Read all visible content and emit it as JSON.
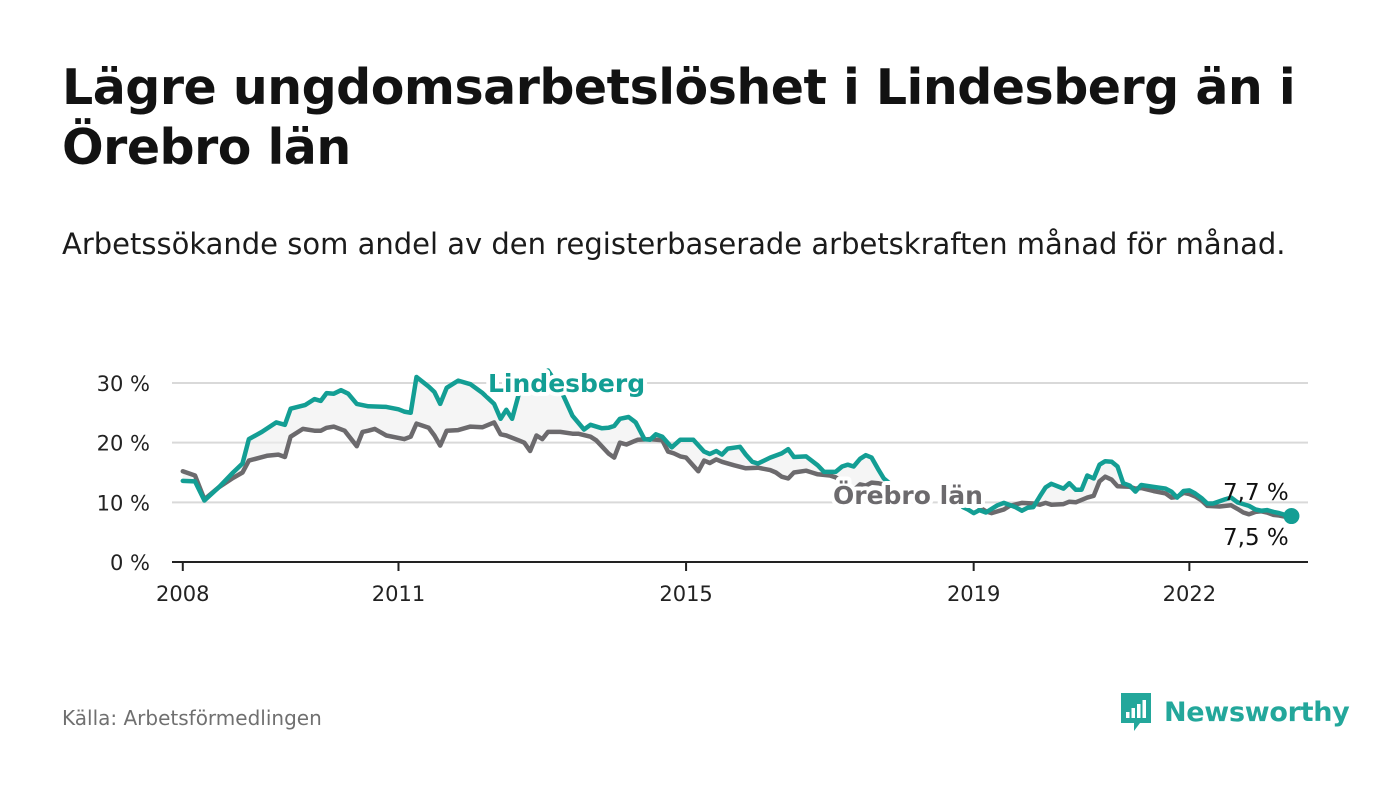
{
  "title": "Lägre ungdomsarbetslöshet i Lindesberg än i Örebro län",
  "subtitle": "Arbetssökande som andel av den registerbaserade arbetskraften månad för månad.",
  "source": "Källa: Arbetsförmedlingen",
  "brand": "Newsworthy",
  "colors": {
    "lindesberg": "#139e94",
    "orebro": "#6c6a6d",
    "grid": "#d9d9d9",
    "brand": "#23a79b"
  },
  "chart_data": {
    "type": "line",
    "y_ticks": [
      "0 %",
      "10 %",
      "20 %",
      "30 %"
    ],
    "x_ticks": [
      "2008",
      "2011",
      "2015",
      "2019",
      "2022"
    ],
    "ylim": [
      0,
      30
    ],
    "xlim": [
      2007.85,
      2023.65
    ],
    "grid": true,
    "series": [
      {
        "name": "Lindesberg",
        "label_text": "Lindesberg",
        "end_label": "7,7 %",
        "points": [
          [
            2008.0,
            13.6
          ],
          [
            2008.17,
            13.5
          ],
          [
            2008.3,
            10.3
          ],
          [
            2008.5,
            12.5
          ],
          [
            2008.7,
            15.0
          ],
          [
            2008.83,
            16.5
          ],
          [
            2008.92,
            20.6
          ],
          [
            2009.1,
            21.8
          ],
          [
            2009.3,
            23.4
          ],
          [
            2009.42,
            23.0
          ],
          [
            2009.5,
            25.7
          ],
          [
            2009.7,
            26.3
          ],
          [
            2009.83,
            27.3
          ],
          [
            2009.92,
            27.0
          ],
          [
            2010.0,
            28.3
          ],
          [
            2010.1,
            28.2
          ],
          [
            2010.2,
            28.8
          ],
          [
            2010.3,
            28.2
          ],
          [
            2010.42,
            26.5
          ],
          [
            2010.58,
            26.1
          ],
          [
            2010.83,
            26.0
          ],
          [
            2011.0,
            25.6
          ],
          [
            2011.08,
            25.2
          ],
          [
            2011.17,
            25.0
          ],
          [
            2011.25,
            31.0
          ],
          [
            2011.42,
            29.4
          ],
          [
            2011.5,
            28.5
          ],
          [
            2011.58,
            26.5
          ],
          [
            2011.67,
            29.2
          ],
          [
            2011.83,
            30.4
          ],
          [
            2012.0,
            29.8
          ],
          [
            2012.17,
            28.3
          ],
          [
            2012.33,
            26.5
          ],
          [
            2012.42,
            24.0
          ],
          [
            2012.5,
            25.5
          ],
          [
            2012.58,
            24.0
          ],
          [
            2012.67,
            28.0
          ],
          [
            2012.83,
            30.3
          ],
          [
            2013.0,
            31.0
          ],
          [
            2013.08,
            32.1
          ],
          [
            2013.25,
            29.0
          ],
          [
            2013.42,
            24.5
          ],
          [
            2013.58,
            22.2
          ],
          [
            2013.67,
            23.0
          ],
          [
            2013.83,
            22.4
          ],
          [
            2013.92,
            22.5
          ],
          [
            2014.0,
            22.8
          ],
          [
            2014.08,
            24.0
          ],
          [
            2014.2,
            24.3
          ],
          [
            2014.3,
            23.4
          ],
          [
            2014.42,
            20.6
          ],
          [
            2014.5,
            20.5
          ],
          [
            2014.58,
            21.4
          ],
          [
            2014.67,
            21.0
          ],
          [
            2014.8,
            19.2
          ],
          [
            2014.92,
            20.5
          ],
          [
            2015.1,
            20.5
          ],
          [
            2015.25,
            18.5
          ],
          [
            2015.33,
            18.1
          ],
          [
            2015.42,
            18.6
          ],
          [
            2015.5,
            18.0
          ],
          [
            2015.58,
            19.0
          ],
          [
            2015.75,
            19.3
          ],
          [
            2015.83,
            18.0
          ],
          [
            2015.92,
            16.8
          ],
          [
            2016.0,
            16.5
          ],
          [
            2016.17,
            17.5
          ],
          [
            2016.33,
            18.2
          ],
          [
            2016.42,
            18.9
          ],
          [
            2016.5,
            17.6
          ],
          [
            2016.67,
            17.7
          ],
          [
            2016.83,
            16.2
          ],
          [
            2016.92,
            15.1
          ],
          [
            2017.08,
            15.1
          ],
          [
            2017.17,
            16.0
          ],
          [
            2017.25,
            16.3
          ],
          [
            2017.33,
            16.0
          ],
          [
            2017.42,
            17.3
          ],
          [
            2017.5,
            17.9
          ],
          [
            2017.58,
            17.5
          ],
          [
            2017.67,
            15.6
          ],
          [
            2017.75,
            14.0
          ],
          [
            2017.83,
            13.2
          ],
          [
            2018.85,
            9.2
          ],
          [
            2018.92,
            8.8
          ],
          [
            2019.0,
            8.2
          ],
          [
            2019.08,
            8.7
          ],
          [
            2019.17,
            8.3
          ],
          [
            2019.25,
            8.9
          ],
          [
            2019.33,
            9.5
          ],
          [
            2019.42,
            9.9
          ],
          [
            2019.58,
            9.2
          ],
          [
            2019.67,
            8.6
          ],
          [
            2019.75,
            9.1
          ],
          [
            2019.83,
            9.2
          ],
          [
            2019.92,
            11.0
          ],
          [
            2020.0,
            12.5
          ],
          [
            2020.08,
            13.1
          ],
          [
            2020.25,
            12.3
          ],
          [
            2020.33,
            13.2
          ],
          [
            2020.42,
            12.1
          ],
          [
            2020.5,
            12.1
          ],
          [
            2020.58,
            14.5
          ],
          [
            2020.67,
            14.0
          ],
          [
            2020.75,
            16.3
          ],
          [
            2020.83,
            16.9
          ],
          [
            2020.92,
            16.8
          ],
          [
            2021.0,
            16.0
          ],
          [
            2021.08,
            13.2
          ],
          [
            2021.17,
            12.8
          ],
          [
            2021.25,
            11.8
          ],
          [
            2021.33,
            12.9
          ],
          [
            2021.5,
            12.6
          ],
          [
            2021.67,
            12.3
          ],
          [
            2021.75,
            11.8
          ],
          [
            2021.83,
            10.8
          ],
          [
            2021.92,
            11.9
          ],
          [
            2022.0,
            12.0
          ],
          [
            2022.08,
            11.5
          ],
          [
            2022.17,
            10.7
          ],
          [
            2022.25,
            9.8
          ],
          [
            2022.33,
            9.8
          ],
          [
            2022.5,
            10.5
          ],
          [
            2022.58,
            10.8
          ],
          [
            2022.67,
            10.0
          ],
          [
            2022.75,
            9.7
          ],
          [
            2022.83,
            9.4
          ],
          [
            2022.92,
            8.8
          ],
          [
            2023.0,
            8.6
          ],
          [
            2023.08,
            8.7
          ],
          [
            2023.17,
            8.4
          ],
          [
            2023.25,
            8.2
          ],
          [
            2023.33,
            7.9
          ],
          [
            2023.42,
            7.7
          ]
        ]
      },
      {
        "name": "Örebro län",
        "label_text": "Örebro län",
        "end_label": "7,5 %",
        "points": [
          [
            2008.0,
            15.2
          ],
          [
            2008.17,
            14.5
          ],
          [
            2008.3,
            10.5
          ],
          [
            2008.5,
            12.5
          ],
          [
            2008.7,
            14.1
          ],
          [
            2008.83,
            15.0
          ],
          [
            2008.92,
            17.0
          ],
          [
            2009.17,
            17.8
          ],
          [
            2009.33,
            18.0
          ],
          [
            2009.42,
            17.6
          ],
          [
            2009.5,
            21.0
          ],
          [
            2009.67,
            22.3
          ],
          [
            2009.83,
            22.0
          ],
          [
            2009.92,
            22.0
          ],
          [
            2010.0,
            22.5
          ],
          [
            2010.1,
            22.7
          ],
          [
            2010.25,
            22.0
          ],
          [
            2010.42,
            19.4
          ],
          [
            2010.5,
            21.8
          ],
          [
            2010.58,
            22.0
          ],
          [
            2010.67,
            22.3
          ],
          [
            2010.83,
            21.2
          ],
          [
            2011.0,
            20.8
          ],
          [
            2011.08,
            20.6
          ],
          [
            2011.17,
            21.0
          ],
          [
            2011.25,
            23.2
          ],
          [
            2011.42,
            22.5
          ],
          [
            2011.5,
            21.2
          ],
          [
            2011.58,
            19.5
          ],
          [
            2011.67,
            22.0
          ],
          [
            2011.83,
            22.1
          ],
          [
            2012.0,
            22.7
          ],
          [
            2012.17,
            22.6
          ],
          [
            2012.33,
            23.4
          ],
          [
            2012.42,
            21.4
          ],
          [
            2012.5,
            21.2
          ],
          [
            2012.67,
            20.4
          ],
          [
            2012.75,
            20.0
          ],
          [
            2012.83,
            18.6
          ],
          [
            2012.92,
            21.2
          ],
          [
            2013.0,
            20.6
          ],
          [
            2013.08,
            21.8
          ],
          [
            2013.25,
            21.8
          ],
          [
            2013.42,
            21.5
          ],
          [
            2013.5,
            21.5
          ],
          [
            2013.67,
            21.0
          ],
          [
            2013.75,
            20.4
          ],
          [
            2013.92,
            18.2
          ],
          [
            2014.0,
            17.5
          ],
          [
            2014.08,
            20.0
          ],
          [
            2014.17,
            19.7
          ],
          [
            2014.33,
            20.5
          ],
          [
            2014.5,
            20.6
          ],
          [
            2014.67,
            20.4
          ],
          [
            2014.75,
            18.5
          ],
          [
            2014.83,
            18.2
          ],
          [
            2014.92,
            17.7
          ],
          [
            2015.0,
            17.5
          ],
          [
            2015.17,
            15.2
          ],
          [
            2015.25,
            17.0
          ],
          [
            2015.33,
            16.6
          ],
          [
            2015.42,
            17.2
          ],
          [
            2015.5,
            16.8
          ],
          [
            2015.67,
            16.2
          ],
          [
            2015.83,
            15.7
          ],
          [
            2016.0,
            15.8
          ],
          [
            2016.17,
            15.4
          ],
          [
            2016.25,
            15.0
          ],
          [
            2016.33,
            14.3
          ],
          [
            2016.42,
            14.0
          ],
          [
            2016.5,
            15.0
          ],
          [
            2016.67,
            15.3
          ],
          [
            2016.75,
            15.0
          ],
          [
            2016.83,
            14.7
          ],
          [
            2017.0,
            14.5
          ],
          [
            2017.08,
            14.2
          ],
          [
            2017.25,
            13.0
          ],
          [
            2017.33,
            12.0
          ],
          [
            2017.42,
            13.0
          ],
          [
            2017.5,
            12.8
          ],
          [
            2017.58,
            13.3
          ],
          [
            2017.67,
            13.2
          ],
          [
            2017.75,
            13.0
          ],
          [
            2019.08,
            9.2
          ],
          [
            2019.17,
            8.5
          ],
          [
            2019.25,
            8.2
          ],
          [
            2019.42,
            8.8
          ],
          [
            2019.5,
            9.4
          ],
          [
            2019.67,
            9.9
          ],
          [
            2019.83,
            9.8
          ],
          [
            2019.92,
            9.6
          ],
          [
            2020.0,
            9.9
          ],
          [
            2020.08,
            9.6
          ],
          [
            2020.25,
            9.7
          ],
          [
            2020.33,
            10.1
          ],
          [
            2020.42,
            10.0
          ],
          [
            2020.58,
            10.8
          ],
          [
            2020.67,
            11.1
          ],
          [
            2020.75,
            13.5
          ],
          [
            2020.83,
            14.3
          ],
          [
            2020.92,
            13.8
          ],
          [
            2021.0,
            12.7
          ],
          [
            2021.17,
            12.6
          ],
          [
            2021.25,
            12.3
          ],
          [
            2021.33,
            12.4
          ],
          [
            2021.5,
            11.9
          ],
          [
            2021.67,
            11.5
          ],
          [
            2021.75,
            10.8
          ],
          [
            2021.83,
            10.9
          ],
          [
            2021.92,
            11.6
          ],
          [
            2022.0,
            11.4
          ],
          [
            2022.08,
            11.0
          ],
          [
            2022.17,
            10.3
          ],
          [
            2022.25,
            9.4
          ],
          [
            2022.42,
            9.3
          ],
          [
            2022.58,
            9.5
          ],
          [
            2022.67,
            8.9
          ],
          [
            2022.75,
            8.3
          ],
          [
            2022.83,
            8.0
          ],
          [
            2022.92,
            8.4
          ],
          [
            2023.0,
            8.5
          ],
          [
            2023.08,
            8.3
          ],
          [
            2023.17,
            7.9
          ],
          [
            2023.25,
            7.8
          ],
          [
            2023.33,
            7.6
          ],
          [
            2023.42,
            7.5
          ]
        ]
      }
    ]
  }
}
